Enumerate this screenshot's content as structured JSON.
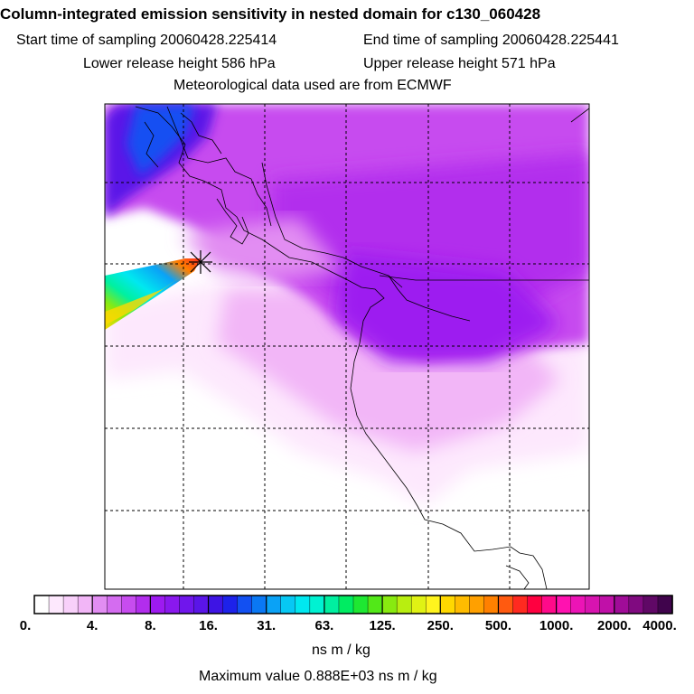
{
  "header": {
    "title": "Column-integrated emission sensitivity in nested domain for c130_060428",
    "start_label": "Start time of sampling 20060428.225414",
    "end_label": "End time of sampling 20060428.225441",
    "lower_label": "Lower release height  586 hPa",
    "upper_label": "Upper release height  571 hPa",
    "met_label": "Meteorological data used are from ECMWF"
  },
  "colorbar": {
    "ticks": [
      "0.",
      "4.",
      "8.",
      "16.",
      "31.",
      "63.",
      "125.",
      "250.",
      "500.",
      "1000.",
      "2000.",
      "4000."
    ],
    "colors": [
      "#ffffff",
      "#fde8fd",
      "#f8d0fa",
      "#f2b6f7",
      "#e28df2",
      "#d46cf0",
      "#c74cef",
      "#b22ded",
      "#9d1af0",
      "#8a18ee",
      "#7016ec",
      "#5a15e8",
      "#3e14e4",
      "#1d22ea",
      "#1250f2",
      "#0a78f4",
      "#0aa2f6",
      "#07c8f4",
      "#00e8f0",
      "#00f2d2",
      "#00f0a0",
      "#00ec62",
      "#1ee832",
      "#52e818",
      "#88ea10",
      "#b8ee10",
      "#e0f214",
      "#fff41e",
      "#ffd800",
      "#ffbc00",
      "#ffa000",
      "#ff8000",
      "#ff5a10",
      "#ff2a20",
      "#ff0040",
      "#ff0a8a",
      "#ff12b0",
      "#ec14b6",
      "#d814b0",
      "#c010a8",
      "#a00c98",
      "#800a80",
      "#600866",
      "#40044c"
    ],
    "units": "ns m / kg",
    "max_value_text": "Maximum value  0.888E+03 ns m / kg"
  },
  "map": {
    "release_marker": "release-point",
    "plume_colors": [
      "#ffd800",
      "#e0f214",
      "#88ea10",
      "#1ee832",
      "#00f0a0",
      "#00e8f0",
      "#0aa2f6",
      "#1250f2"
    ],
    "background_colors": [
      "#b22ded",
      "#c74cef",
      "#d46cf0",
      "#e28df2",
      "#f2b6f7",
      "#f8d0fa",
      "#fde8fd",
      "#3e14e4",
      "#1d22ea",
      "#0a78f4",
      "#9d1af0",
      "#8a18ee"
    ]
  }
}
